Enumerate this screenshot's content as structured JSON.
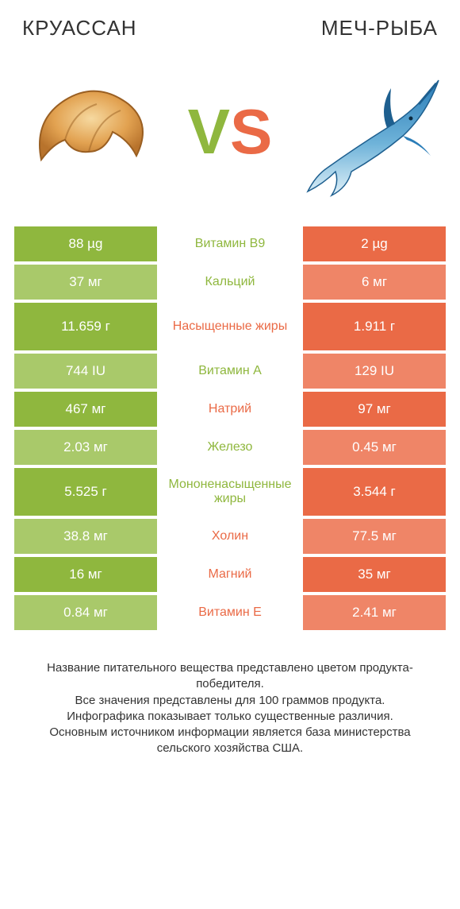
{
  "colors": {
    "green_dark": "#8fb73e",
    "green_light": "#a9c96a",
    "orange_dark": "#ea6a46",
    "orange_light": "#ef8567",
    "text": "#333333",
    "bg": "#ffffff"
  },
  "header": {
    "left_title": "КРУАССАН",
    "right_title": "МЕЧ-РЫБА",
    "vs_v": "V",
    "vs_s": "S"
  },
  "rows": [
    {
      "left": "88 µg",
      "label": "Витамин B9",
      "right": "2 µg",
      "winner": "left",
      "tall": false
    },
    {
      "left": "37 мг",
      "label": "Кальций",
      "right": "6 мг",
      "winner": "left",
      "tall": false
    },
    {
      "left": "11.659 г",
      "label": "Насыщенные жиры",
      "right": "1.911 г",
      "winner": "right",
      "tall": true
    },
    {
      "left": "744 IU",
      "label": "Витамин A",
      "right": "129 IU",
      "winner": "left",
      "tall": false
    },
    {
      "left": "467 мг",
      "label": "Натрий",
      "right": "97 мг",
      "winner": "right",
      "tall": false
    },
    {
      "left": "2.03 мг",
      "label": "Железо",
      "right": "0.45 мг",
      "winner": "left",
      "tall": false
    },
    {
      "left": "5.525 г",
      "label": "Мононенасыщенные жиры",
      "right": "3.544 г",
      "winner": "left",
      "tall": true
    },
    {
      "left": "38.8 мг",
      "label": "Холин",
      "right": "77.5 мг",
      "winner": "right",
      "tall": false
    },
    {
      "left": "16 мг",
      "label": "Магний",
      "right": "35 мг",
      "winner": "right",
      "tall": false
    },
    {
      "left": "0.84 мг",
      "label": "Витамин E",
      "right": "2.41 мг",
      "winner": "right",
      "tall": false
    }
  ],
  "footer": {
    "line1": "Название питательного вещества представлено цветом продукта-победителя.",
    "line2": "Все значения представлены для 100 граммов продукта.",
    "line3": "Инфографика показывает только существенные различия.",
    "line4": "Основным источником информации является база министерства сельского хозяйства США."
  }
}
